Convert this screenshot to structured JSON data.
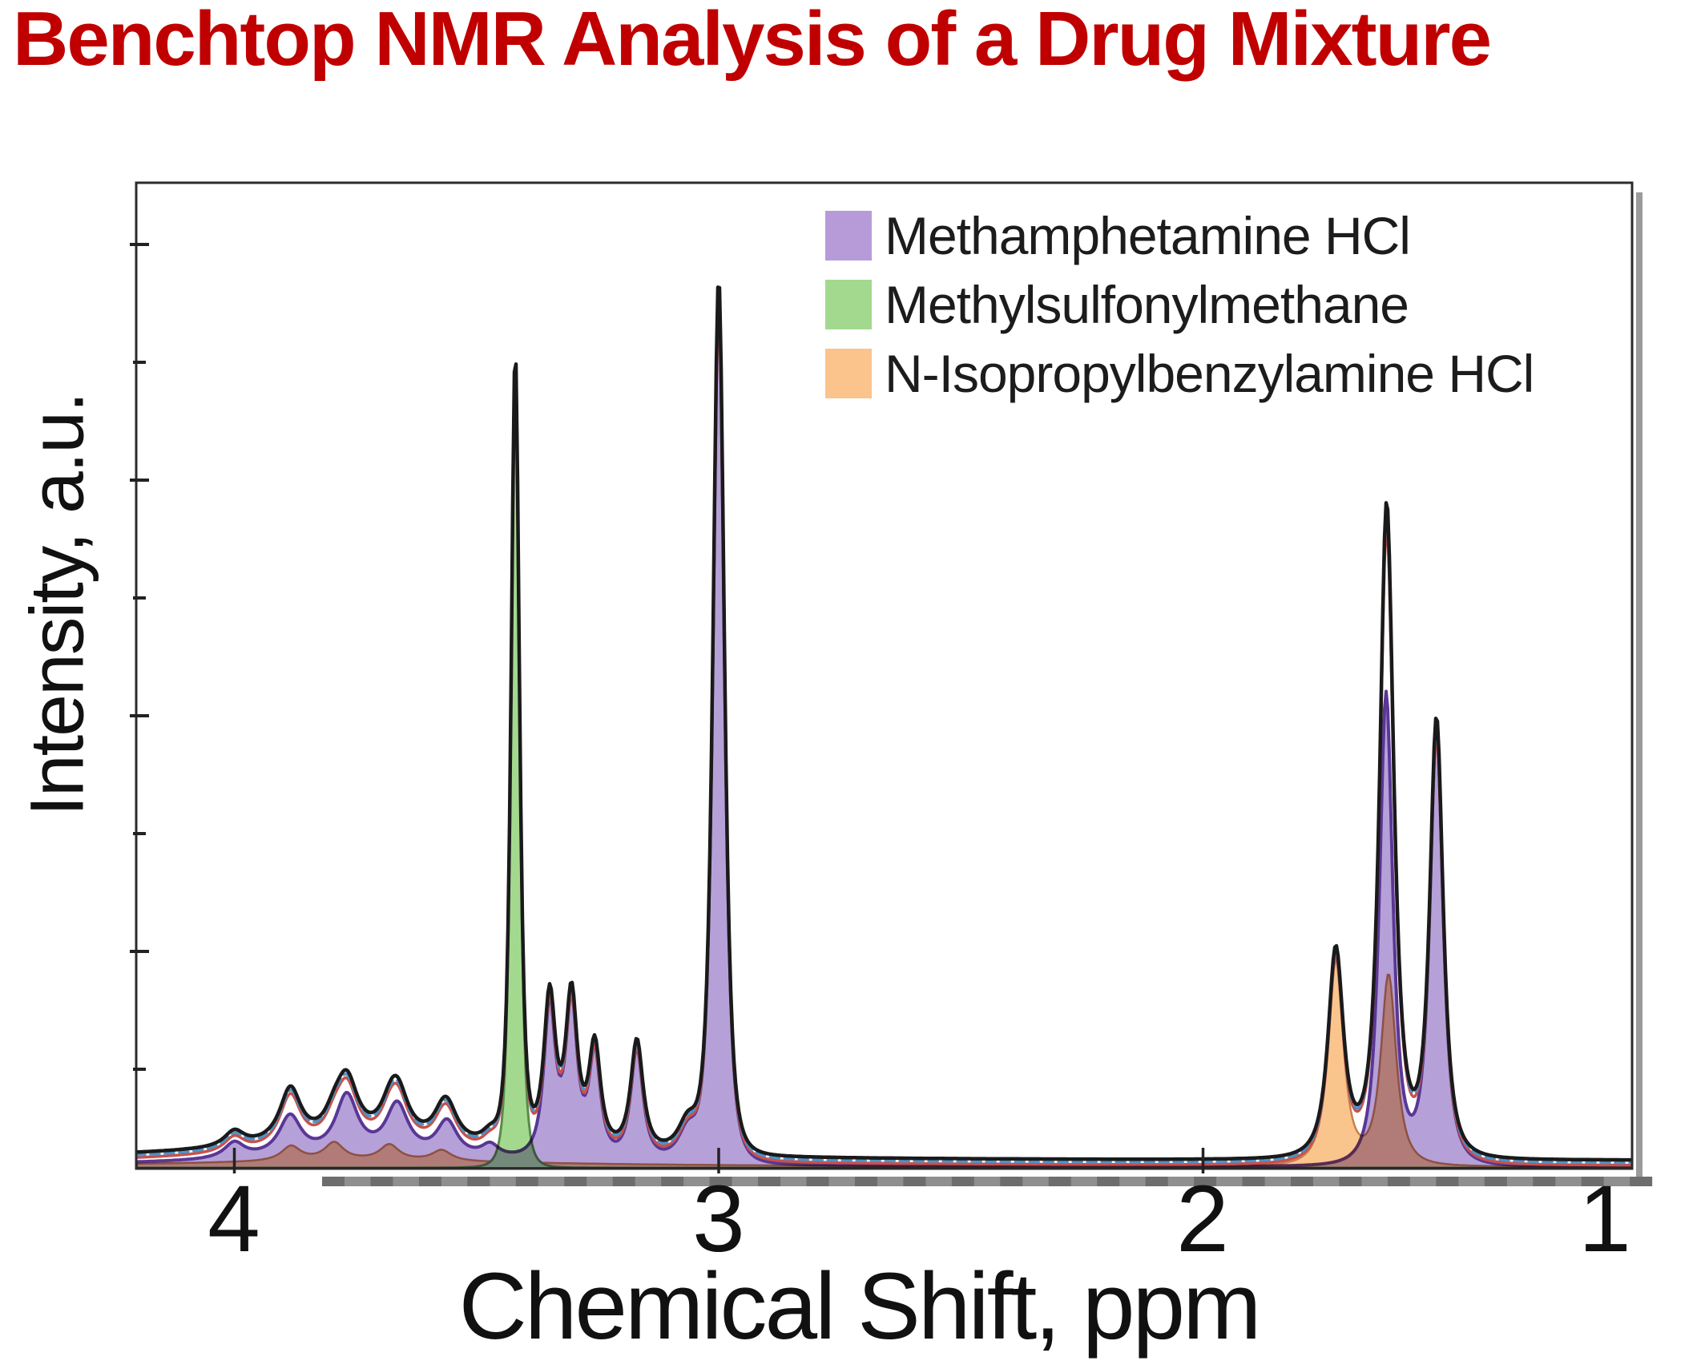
{
  "title": {
    "text": "Benchtop NMR Analysis of a Drug Mixture",
    "color": "#C00000"
  },
  "legend": {
    "items": [
      {
        "label": "Methamphetamine HCl",
        "color": "#B79BD8"
      },
      {
        "label": "Methylsulfonylmethane",
        "color": "#A3D98F"
      },
      {
        "label": "N-Isopropylbenzylamine HCl",
        "color": "#FAC48C"
      }
    ]
  },
  "chart_data": {
    "type": "line",
    "subtype": "nmr-spectrum",
    "title": "Benchtop NMR Analysis of a Drug Mixture",
    "xlabel": "Chemical Shift, ppm",
    "ylabel": "Intensity, a.u.",
    "grid": false,
    "legend_position": "upper right",
    "x_axis": {
      "range_ppm": [
        4.2,
        1.1
      ],
      "reversed": true,
      "ticks": [
        4,
        3,
        2,
        1
      ],
      "tick_labels": [
        "4",
        "3",
        "2",
        "1"
      ],
      "minor_tick_step_ppm": 0.1
    },
    "y_axis": {
      "label": "Intensity, a.u.",
      "units": "arbitrary",
      "tick_labels_shown": false,
      "minor_tick_count": 8
    },
    "line_shape": "generalized-lorentzian",
    "series": [
      {
        "name": "Methamphetamine HCl",
        "fill_color": "#B5A1D8",
        "edge_color": "#5A3796",
        "blend": "multiply",
        "peaks": [
          {
            "ppm": 4.0,
            "height": 0.016,
            "hwhm_ppm": 0.025,
            "shape_exp": 1.0
          },
          {
            "ppm": 3.885,
            "height": 0.041,
            "hwhm_ppm": 0.028,
            "shape_exp": 1.0
          },
          {
            "ppm": 3.768,
            "height": 0.061,
            "hwhm_ppm": 0.028,
            "shape_exp": 1.0
          },
          {
            "ppm": 3.664,
            "height": 0.052,
            "hwhm_ppm": 0.028,
            "shape_exp": 1.0
          },
          {
            "ppm": 3.561,
            "height": 0.036,
            "hwhm_ppm": 0.026,
            "shape_exp": 1.0
          },
          {
            "ppm": 3.472,
            "height": 0.013,
            "hwhm_ppm": 0.022,
            "shape_exp": 1.0
          },
          {
            "ppm": 3.349,
            "height": 0.154,
            "hwhm_ppm": 0.016,
            "shape_exp": 1.2
          },
          {
            "ppm": 3.304,
            "height": 0.154,
            "hwhm_ppm": 0.016,
            "shape_exp": 1.2
          },
          {
            "ppm": 3.256,
            "height": 0.105,
            "hwhm_ppm": 0.016,
            "shape_exp": 1.2
          },
          {
            "ppm": 3.169,
            "height": 0.113,
            "hwhm_ppm": 0.017,
            "shape_exp": 1.2
          },
          {
            "ppm": 3.064,
            "height": 0.032,
            "hwhm_ppm": 0.025,
            "shape_exp": 1.0
          },
          {
            "ppm": 3.0,
            "height": 0.887,
            "hwhm_ppm": 0.02,
            "shape_exp": 1.8
          },
          {
            "ppm": 1.622,
            "height": 0.478,
            "hwhm_ppm": 0.02,
            "shape_exp": 1.4
          },
          {
            "ppm": 1.518,
            "height": 0.442,
            "hwhm_ppm": 0.02,
            "shape_exp": 1.4
          },
          {
            "ppm": 3.78,
            "height": 0.008,
            "hwhm_ppm": 0.45,
            "shape_exp": 1.0
          }
        ]
      },
      {
        "name": "Methylsulfonylmethane",
        "fill_color": "#A3D98F",
        "edge_color": "#5A8A4A",
        "blend": "normal",
        "peaks": [
          {
            "ppm": 3.42,
            "height": 0.802,
            "hwhm_ppm": 0.015,
            "shape_exp": 1.9
          }
        ]
      },
      {
        "name": "N-Isopropylbenzylamine HCl",
        "fill_color": "#F9C58C",
        "edge_color": "#C87F4F",
        "blend": "normal",
        "peaks": [
          {
            "ppm": 3.883,
            "height": 0.015,
            "hwhm_ppm": 0.024,
            "shape_exp": 1.0
          },
          {
            "ppm": 3.794,
            "height": 0.018,
            "hwhm_ppm": 0.024,
            "shape_exp": 1.0
          },
          {
            "ppm": 3.68,
            "height": 0.016,
            "hwhm_ppm": 0.024,
            "shape_exp": 1.0
          },
          {
            "ppm": 3.572,
            "height": 0.011,
            "hwhm_ppm": 0.024,
            "shape_exp": 1.0
          },
          {
            "ppm": 1.726,
            "height": 0.21,
            "hwhm_ppm": 0.022,
            "shape_exp": 1.3
          },
          {
            "ppm": 1.617,
            "height": 0.193,
            "hwhm_ppm": 0.022,
            "shape_exp": 1.3
          },
          {
            "ppm": 3.72,
            "height": 0.006,
            "hwhm_ppm": 0.5,
            "shape_exp": 1.0
          }
        ]
      }
    ],
    "overlay_traces": [
      {
        "name": "mixture",
        "color": "#1A1A1A",
        "style": "solid"
      },
      {
        "name": "mixture-replicate-blue",
        "color": "#4D92C8",
        "style": "dashed"
      },
      {
        "name": "mixture-replicate-red",
        "color": "#C9504A",
        "style": "solid"
      }
    ]
  }
}
